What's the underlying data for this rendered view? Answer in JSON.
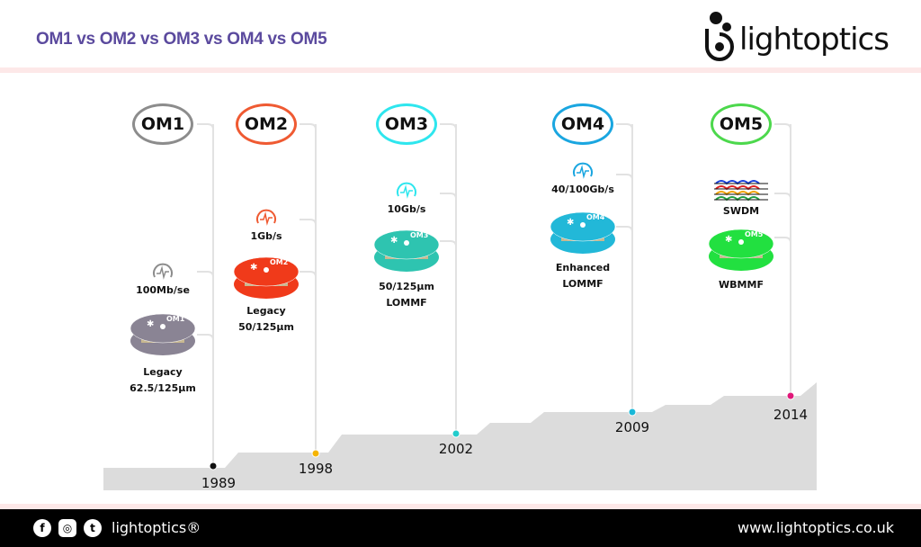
{
  "header": {
    "title": "OM1 vs OM2 vs OM3 vs OM4 vs OM5",
    "logo_text": "lightoptics"
  },
  "timeline": [
    {
      "name": "OM1",
      "color": "#8c8c8c",
      "speed": "100Mb/se",
      "fiber_lines": [
        "Legacy",
        "62.5/125µm"
      ],
      "year": "1989",
      "dot": "#111111",
      "spool_color": "#8a8494"
    },
    {
      "name": "OM2",
      "color": "#ef5a32",
      "speed": "1Gb/s",
      "fiber_lines": [
        "Legacy",
        "50/125µm"
      ],
      "year": "1998",
      "dot": "#f5b400",
      "spool_color": "#f03a1a"
    },
    {
      "name": "OM3",
      "color": "#2ee6ee",
      "speed": "10Gb/s",
      "fiber_lines": [
        "50/125µm",
        "LOMMF"
      ],
      "year": "2002",
      "dot": "#22cccc",
      "spool_color": "#2ec4b0"
    },
    {
      "name": "OM4",
      "color": "#1aa6e0",
      "speed": "40/100Gb/s",
      "fiber_lines": [
        "Enhanced",
        "LOMMF"
      ],
      "year": "2009",
      "dot": "#1ab8d8",
      "spool_color": "#22b8d8"
    },
    {
      "name": "OM5",
      "color": "#4cd84c",
      "speed": "SWDM",
      "fiber_lines": [
        "WBMMF"
      ],
      "year": "2014",
      "dot": "#e0187a",
      "spool_color": "#22e040"
    }
  ],
  "footer": {
    "brand": "lightoptics®",
    "url": "www.lightoptics.co.uk",
    "social": [
      "facebook-icon",
      "instagram-icon",
      "twitter-icon"
    ]
  }
}
